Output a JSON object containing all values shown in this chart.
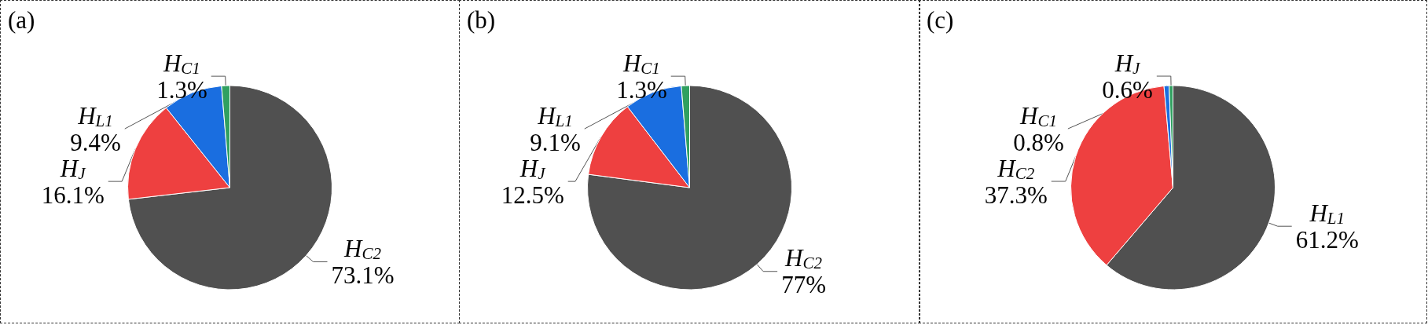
{
  "chart_data": [
    {
      "type": "pie",
      "title": "(a)",
      "categories": [
        "H$_{C2}$",
        "H$_{J}$",
        "H$_{L1}$",
        "H$_{C1}$"
      ],
      "values": [
        73.1,
        16.1,
        9.4,
        1.3
      ],
      "value_labels": [
        "73.1%",
        "16.1%",
        "9.4%",
        "1.3%"
      ],
      "colors": [
        "#505050",
        "#ee4040",
        "#1a6ee0",
        "#30a060"
      ]
    },
    {
      "type": "pie",
      "title": "(b)",
      "categories": [
        "H$_{C2}$",
        "H$_{J}$",
        "H$_{L1}$",
        "H$_{C1}$"
      ],
      "values": [
        77,
        12.5,
        9.1,
        1.3
      ],
      "value_labels": [
        "77%",
        "12.5%",
        "9.1%",
        "1.3%"
      ],
      "colors": [
        "#505050",
        "#ee4040",
        "#1a6ee0",
        "#30a060"
      ]
    },
    {
      "type": "pie",
      "title": "(c)",
      "categories": [
        "H$_{L1}$",
        "H$_{C2}$",
        "H$_{C1}$",
        "H$_{J}$"
      ],
      "values": [
        61.2,
        37.3,
        0.8,
        0.6
      ],
      "value_labels": [
        "61.2%",
        "37.3%",
        "0.8%",
        "0.6%"
      ],
      "colors": [
        "#505050",
        "#ee4040",
        "#1a6ee0",
        "#30a060"
      ]
    }
  ]
}
